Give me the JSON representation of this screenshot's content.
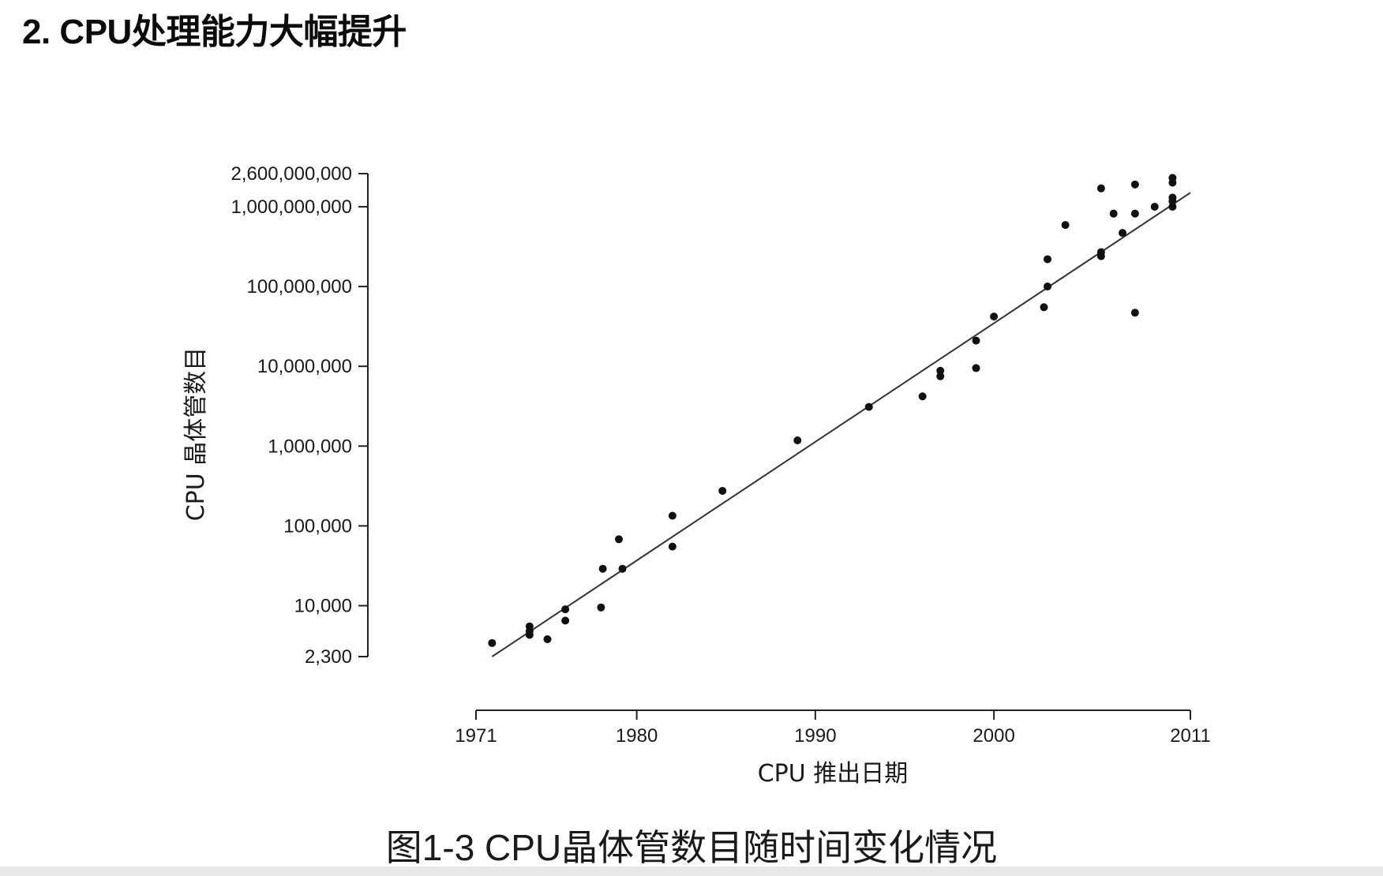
{
  "heading": "2. CPU处理能力大幅提升",
  "caption": "图1-3 CPU晶体管数目随时间变化情况",
  "chart_data": {
    "type": "scatter",
    "title": "",
    "xlabel": "CPU 推出日期",
    "ylabel": "CPU 晶体管数目",
    "y_scale": "log",
    "xlim": [
      1971,
      2011
    ],
    "ylim": [
      2300,
      2600000000
    ],
    "x_ticks": [
      1971,
      1980,
      1990,
      2000,
      2011
    ],
    "x_tick_labels": [
      "1971",
      "1980",
      "1990",
      "2000",
      "2011"
    ],
    "y_ticks": [
      2300,
      10000,
      100000,
      1000000,
      10000000,
      100000000,
      1000000000,
      2600000000
    ],
    "y_tick_labels": [
      "2,300",
      "10,000",
      "100,000",
      "1,000,000",
      "10,000,000",
      "100,000,000",
      "1,000,000,000",
      "2,600,000,000"
    ],
    "grid": false,
    "marker_color": "#111111",
    "trend_color": "#333333",
    "points": [
      {
        "x": 1971.9,
        "y": 3400
      },
      {
        "x": 1974.0,
        "y": 4300
      },
      {
        "x": 1974.0,
        "y": 4800
      },
      {
        "x": 1974.0,
        "y": 5500
      },
      {
        "x": 1975.0,
        "y": 3800
      },
      {
        "x": 1976.0,
        "y": 6500
      },
      {
        "x": 1976.0,
        "y": 9000
      },
      {
        "x": 1978.0,
        "y": 9500
      },
      {
        "x": 1978.1,
        "y": 29000
      },
      {
        "x": 1979.0,
        "y": 68000
      },
      {
        "x": 1979.2,
        "y": 29000
      },
      {
        "x": 1982.0,
        "y": 55000
      },
      {
        "x": 1982.0,
        "y": 134000
      },
      {
        "x": 1984.8,
        "y": 275000
      },
      {
        "x": 1989.0,
        "y": 1180000
      },
      {
        "x": 1993.0,
        "y": 3100000
      },
      {
        "x": 1996.0,
        "y": 4200000
      },
      {
        "x": 1997.0,
        "y": 7500000
      },
      {
        "x": 1997.0,
        "y": 8800000
      },
      {
        "x": 1999.0,
        "y": 9500000
      },
      {
        "x": 1999.0,
        "y": 21000000
      },
      {
        "x": 2000.0,
        "y": 42000000
      },
      {
        "x": 2002.8,
        "y": 55000000
      },
      {
        "x": 2003.0,
        "y": 100000000
      },
      {
        "x": 2003.0,
        "y": 220000000
      },
      {
        "x": 2004.0,
        "y": 590000000
      },
      {
        "x": 2006.0,
        "y": 240000000
      },
      {
        "x": 2006.0,
        "y": 270000000
      },
      {
        "x": 2006.0,
        "y": 1700000000
      },
      {
        "x": 2006.7,
        "y": 820000000
      },
      {
        "x": 2007.2,
        "y": 470000000
      },
      {
        "x": 2007.9,
        "y": 47000000
      },
      {
        "x": 2007.9,
        "y": 820000000
      },
      {
        "x": 2007.9,
        "y": 1900000000
      },
      {
        "x": 2009.0,
        "y": 1000000000
      },
      {
        "x": 2010.0,
        "y": 1000000000
      },
      {
        "x": 2010.0,
        "y": 1170000000
      },
      {
        "x": 2010.0,
        "y": 1300000000
      },
      {
        "x": 2010.0,
        "y": 2000000000
      },
      {
        "x": 2010.0,
        "y": 2300000000
      }
    ],
    "trend_line": [
      {
        "x": 1971.9,
        "y": 2300
      },
      {
        "x": 2011.0,
        "y": 1500000000
      }
    ]
  }
}
